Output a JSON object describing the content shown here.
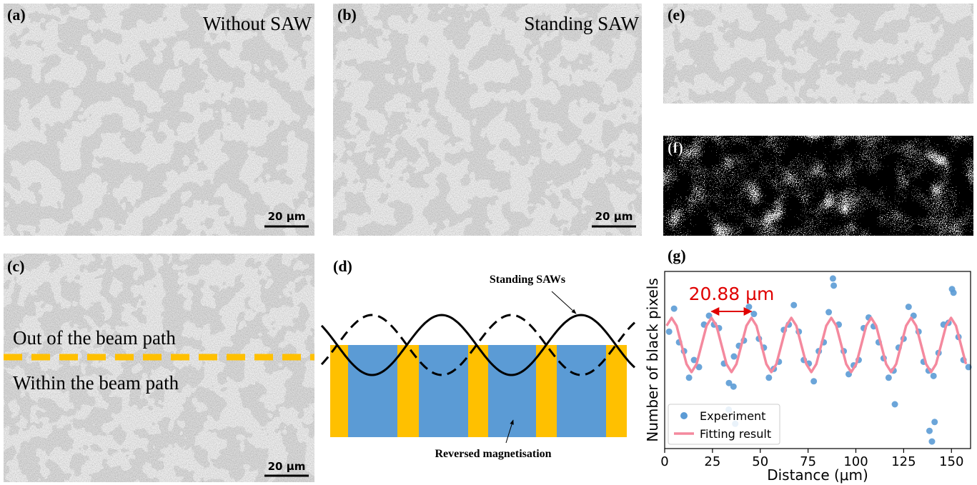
{
  "panels": {
    "a": {
      "label": "(a)",
      "title": "Without SAW",
      "scale_bar": "20 µm"
    },
    "b": {
      "label": "(b)",
      "title": "Standing SAW",
      "scale_bar": "20 µm"
    },
    "c": {
      "label": "(c)",
      "upper_text": "Out of the beam path",
      "lower_text": "Within the beam path",
      "scale_bar": "20 µm"
    },
    "d": {
      "label": "(d)",
      "wave_label": "Standing SAWs",
      "stripe_label": "Reversed magnetisation"
    },
    "e": {
      "label": "(e)"
    },
    "f": {
      "label": "(f)"
    },
    "g": {
      "label": "(g)"
    }
  },
  "chart_data": {
    "type": "scatter",
    "xlabel": "Distance (μm)",
    "ylabel": "Number of black pixels",
    "xlim": [
      0,
      160
    ],
    "ylim": [
      0,
      100
    ],
    "xticks": [
      0,
      25,
      50,
      75,
      100,
      125,
      150
    ],
    "legend": "lower left",
    "annotation": {
      "text": "20.88 µm",
      "color": "#e00000"
    },
    "series": [
      {
        "name": "Experiment",
        "color": "#5b9bd5",
        "type": "scatter",
        "x": [
          2.31,
          4.92,
          7.53,
          10.14,
          12.75,
          15.36,
          17.97,
          20.58,
          23.19,
          25.8,
          28.41,
          31.02,
          33.63,
          36.24,
          38.85,
          41.46,
          44.07,
          46.68,
          49.29,
          51.9,
          54.51,
          57.12,
          59.73,
          62.34,
          64.95,
          67.56,
          70.17,
          72.78,
          75.39,
          78.0,
          80.61,
          83.22,
          85.83,
          88.44,
          91.05,
          93.66,
          96.27,
          98.88,
          101.49,
          104.1,
          106.71,
          109.32,
          111.93,
          114.54,
          117.15,
          119.76,
          122.37,
          124.98,
          127.59,
          130.2,
          132.81,
          135.42,
          138.03,
          140.64,
          143.25,
          145.86,
          148.47,
          151.08,
          153.69,
          156.3,
          158.91,
          33.5,
          36.9,
          138.5,
          139.8,
          141.2,
          88.0,
          150.3,
          120.4,
          36.0
        ],
        "values": [
          66,
          79,
          60,
          55,
          40,
          50,
          46,
          70,
          75,
          70,
          68,
          48,
          37,
          52,
          58,
          61,
          80,
          76,
          62,
          57,
          40,
          45,
          49,
          67,
          70,
          81,
          66,
          50,
          48,
          38,
          55,
          60,
          77,
          92,
          70,
          55,
          42,
          47,
          50,
          68,
          74,
          69,
          60,
          51,
          40,
          44,
          57,
          62,
          80,
          75,
          66,
          49,
          44,
          41,
          54,
          70,
          71,
          88,
          63,
          50,
          46,
          22,
          14,
          10,
          4,
          15,
          96,
          90,
          25,
          35
        ]
      },
      {
        "name": "Fitting result",
        "color": "#f4899e",
        "type": "line",
        "x": [
          1.01,
          3.62,
          6.23,
          8.84,
          11.45,
          14.06,
          16.67,
          19.28,
          21.89,
          24.5,
          27.11,
          29.72,
          32.33,
          34.94,
          37.55,
          40.16,
          42.77,
          45.38,
          47.99,
          50.6,
          53.21,
          55.82,
          58.43,
          61.04,
          63.65,
          66.26,
          68.87,
          71.48,
          74.09,
          76.7,
          79.31,
          81.92,
          84.53,
          87.14,
          89.75,
          92.36,
          94.97,
          97.58,
          100.19,
          102.8,
          105.41,
          108.02,
          110.63,
          113.24,
          115.85,
          118.46,
          121.07,
          123.68,
          126.29,
          128.9,
          131.51,
          134.12,
          136.73,
          139.34,
          141.95,
          144.56,
          147.17,
          149.78,
          152.39,
          155.0,
          157.61
        ],
        "values": [
          69.3,
          73.8,
          69.3,
          58.5,
          47.7,
          43.2,
          47.7,
          58.5,
          69.3,
          73.8,
          69.3,
          58.5,
          47.7,
          43.2,
          47.7,
          58.5,
          69.3,
          73.8,
          69.3,
          58.5,
          47.7,
          43.2,
          47.7,
          58.5,
          69.3,
          73.8,
          69.3,
          58.5,
          47.7,
          43.2,
          47.7,
          58.5,
          69.3,
          73.8,
          69.3,
          58.5,
          47.7,
          43.2,
          47.7,
          58.5,
          69.3,
          73.8,
          69.3,
          58.5,
          47.7,
          43.2,
          47.7,
          58.5,
          69.3,
          73.8,
          69.3,
          58.5,
          47.7,
          43.2,
          47.7,
          58.5,
          69.3,
          73.8,
          69.3,
          58.5,
          47.7
        ]
      }
    ]
  }
}
